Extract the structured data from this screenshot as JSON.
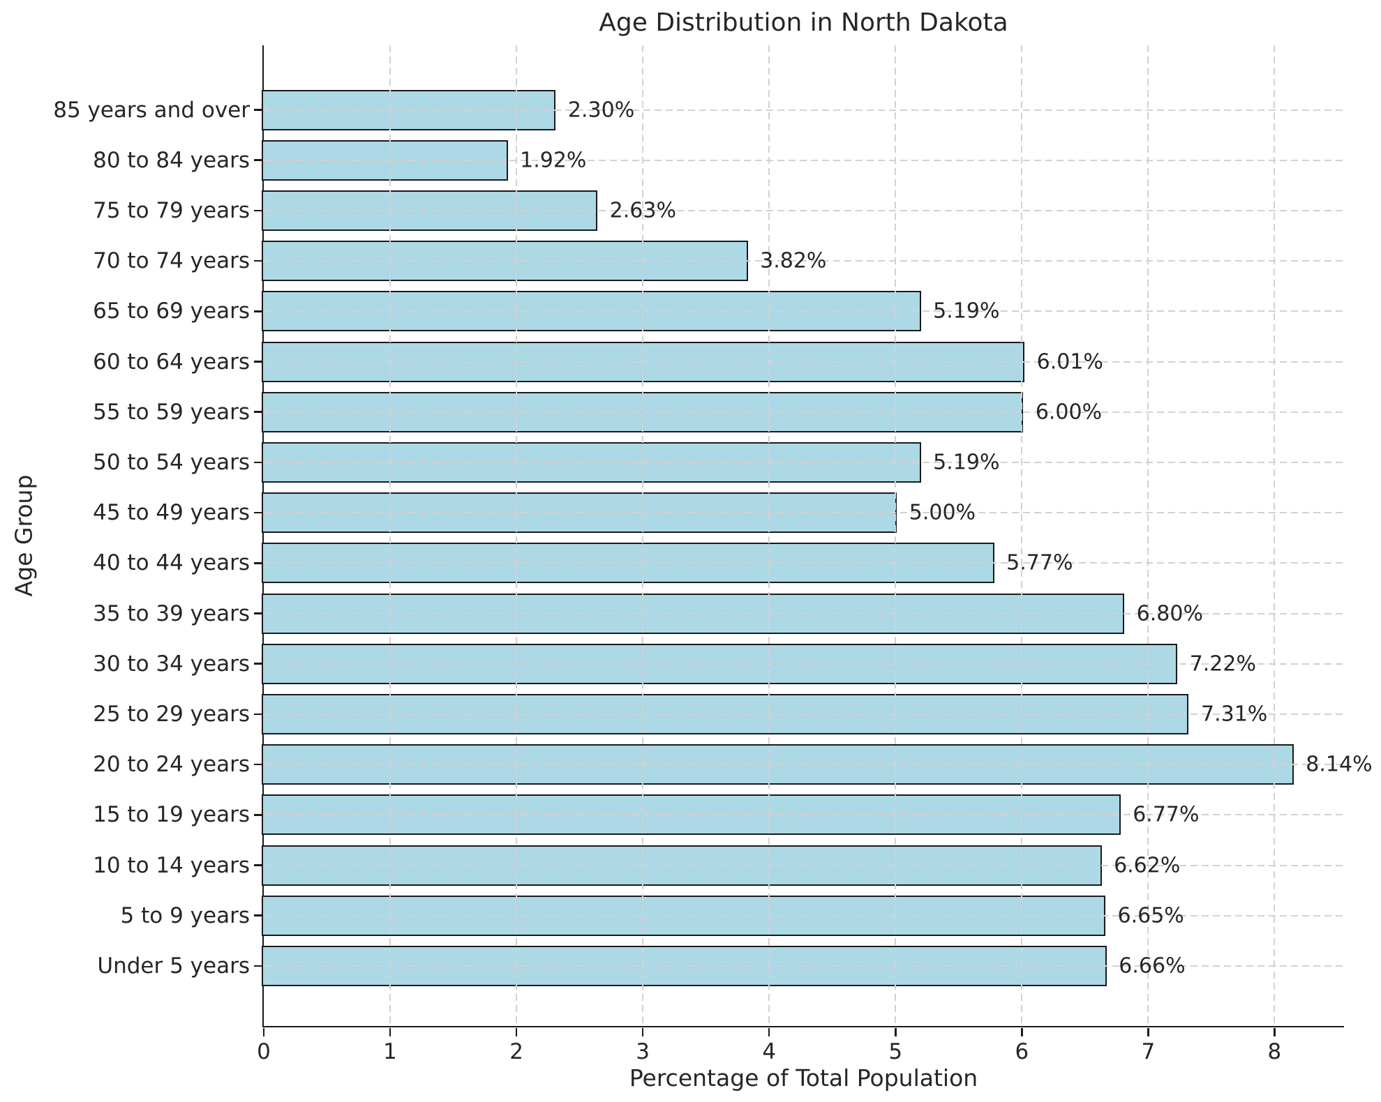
{
  "chart_data": {
    "type": "bar",
    "orientation": "horizontal",
    "title": "Age Distribution in North Dakota",
    "xlabel": "Percentage of Total Population",
    "ylabel": "Age Group",
    "categories": [
      "85 years and over",
      "80 to 84 years",
      "75 to 79 years",
      "70 to 74 years",
      "65 to 69 years",
      "60 to 64 years",
      "55 to 59 years",
      "50 to 54 years",
      "45 to 49 years",
      "40 to 44 years",
      "35 to 39 years",
      "30 to 34 years",
      "25 to 29 years",
      "20 to 24 years",
      "15 to 19 years",
      "10 to 14 years",
      "5 to 9 years",
      "Under 5 years"
    ],
    "values": [
      2.3,
      1.92,
      2.63,
      3.82,
      5.19,
      6.01,
      6.0,
      5.19,
      5.0,
      5.77,
      6.8,
      7.22,
      7.31,
      8.14,
      6.77,
      6.62,
      6.65,
      6.66
    ],
    "value_labels": [
      "2.30%",
      "1.92%",
      "2.63%",
      "3.82%",
      "5.19%",
      "6.01%",
      "6.00%",
      "5.19%",
      "5.00%",
      "5.77%",
      "6.80%",
      "7.22%",
      "7.31%",
      "8.14%",
      "6.77%",
      "6.62%",
      "6.65%",
      "6.66%"
    ],
    "xticks": [
      0,
      1,
      2,
      3,
      4,
      5,
      6,
      7,
      8
    ],
    "xlim": [
      0,
      8.55
    ],
    "grid": {
      "visible": true,
      "style": "dashed",
      "axis": "both",
      "above_bars": true
    },
    "legend": null,
    "colors": {
      "bar_fill": "#ADD8E6",
      "bar_edge": "#1a1a1a",
      "grid_line": "#d2d2d2",
      "spine": "#1a1a1a",
      "text": "#262626",
      "background": "#ffffff"
    }
  }
}
